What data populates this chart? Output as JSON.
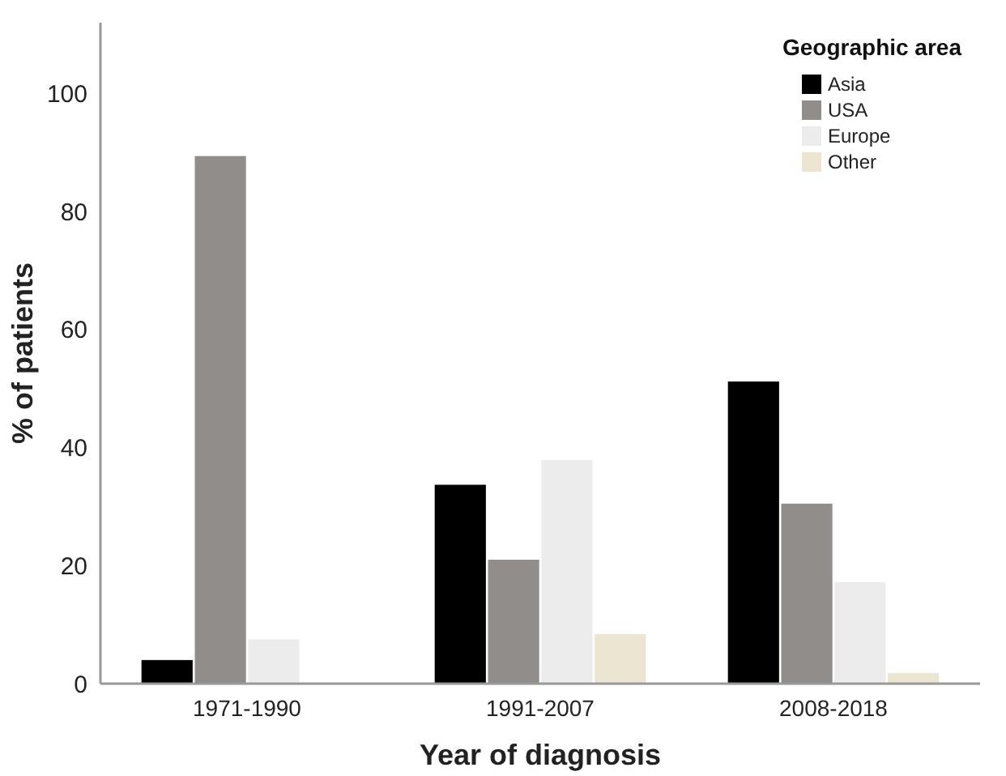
{
  "chart_data": {
    "type": "bar",
    "xlabel": "Year of diagnosis",
    "ylabel": "% of patients",
    "legend_title": "Geographic area",
    "legend": "top right",
    "grid": false,
    "categories": [
      "1971-1990",
      "1991-2007",
      "2008-2018"
    ],
    "series": [
      {
        "name": "Asia",
        "color": "#000000",
        "values": [
          4,
          33.7,
          51.2
        ]
      },
      {
        "name": "USA",
        "color": "#918d8b",
        "values": [
          89.4,
          21,
          30.5
        ]
      },
      {
        "name": "Europe",
        "color": "#ececec",
        "values": [
          7.5,
          37.9,
          17.2
        ]
      },
      {
        "name": "Other",
        "color": "#ebe5d2",
        "values": [
          null,
          8.4,
          1.8
        ]
      }
    ],
    "ylim": [
      0,
      112
    ],
    "yticks": [
      0,
      20,
      40,
      60,
      80,
      100
    ]
  }
}
